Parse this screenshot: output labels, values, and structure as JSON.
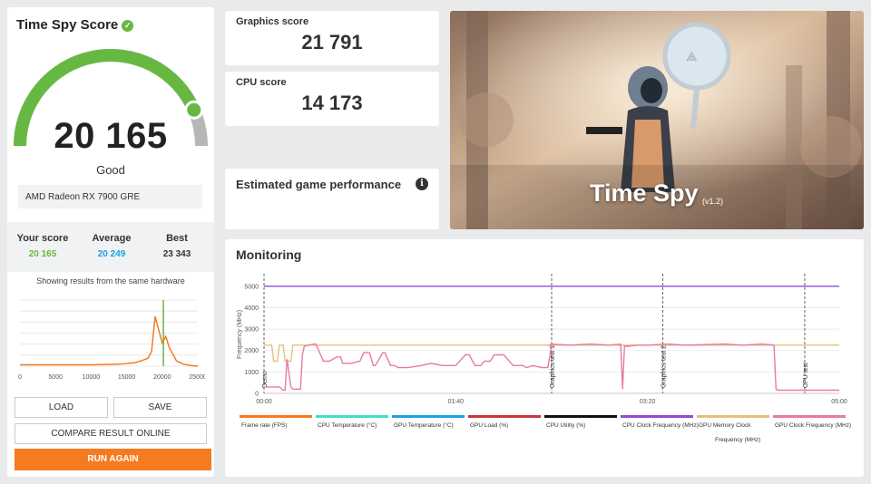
{
  "left_panel": {
    "title": "Time Spy Score",
    "score": "20 165",
    "rating": "Good",
    "gpu_name": "AMD Radeon RX 7900 GRE",
    "your_score_label": "Your score",
    "your_score": "20 165",
    "average_label": "Average",
    "average": "20 249",
    "best_label": "Best",
    "best": "23 343",
    "hist_note": "Showing results from the same hardware",
    "hist_ticks": [
      "0",
      "5000",
      "10000",
      "15000",
      "20000",
      "25000"
    ],
    "gauge_fraction": 0.87,
    "colors": {
      "green": "#67b843",
      "gray": "#b7b7b7",
      "orange": "#f47b20",
      "blue": "#1ba1e2"
    }
  },
  "buttons": {
    "load": "LOAD",
    "save": "SAVE",
    "compare": "COMPARE RESULT ONLINE",
    "run_again": "RUN AGAIN"
  },
  "scores": {
    "graphics_label": "Graphics score",
    "graphics": "21 791",
    "cpu_label": "CPU score",
    "cpu": "14 173"
  },
  "game_perf": {
    "label": "Estimated game performance",
    "info_icon": "info-icon"
  },
  "hero": {
    "title": "Time Spy",
    "version": "(v1.2)"
  },
  "monitoring": {
    "title": "Monitoring",
    "y_label": "Frequency (MHz)",
    "y_ticks": [
      "0",
      "1000",
      "2000",
      "3000",
      "4000",
      "5000"
    ],
    "x_ticks": [
      "00:00",
      "01:40",
      "03:20",
      "05:00"
    ],
    "markers": [
      "Demo",
      "Graphics test 1",
      "Graphics test 2",
      "CPU test"
    ],
    "legend": [
      {
        "label": "Frame rate (FPS)",
        "color": "#f47b20"
      },
      {
        "label": "CPU Temperature (°C)",
        "color": "#3ee0c8"
      },
      {
        "label": "GPU Temperature (°C)",
        "color": "#1ba1e2"
      },
      {
        "label": "GPU Load (%)",
        "color": "#c8373c"
      },
      {
        "label": "CPU Utility (%)",
        "color": "#111111"
      },
      {
        "label": "CPU Clock Frequency (MHz)",
        "color": "#8e4fd1"
      },
      {
        "label": "GPU Memory Clock Frequency (MHz)",
        "color": "#e6c07a"
      },
      {
        "label": "GPU Clock Frequency (MHz)",
        "color": "#e87aa6"
      }
    ]
  },
  "chart_data": {
    "type": "line",
    "xlabel": "",
    "ylabel": "Frequency (MHz)",
    "ylim": [
      0,
      5500
    ],
    "xlim_seconds": [
      0,
      300
    ],
    "series": [
      {
        "name": "CPU Clock Frequency (MHz)",
        "x": [
          0,
          300
        ],
        "values": [
          5000,
          5000
        ]
      },
      {
        "name": "GPU Memory Clock Frequency (MHz)",
        "x": [
          0,
          4,
          5,
          7,
          8,
          10,
          11,
          14,
          15,
          16,
          300
        ],
        "values": [
          2250,
          2250,
          1500,
          1500,
          2250,
          2250,
          1500,
          1500,
          2250,
          2250,
          2250
        ]
      },
      {
        "name": "GPU Clock Frequency (MHz)",
        "x": [
          0,
          8,
          10,
          11,
          12,
          14,
          15,
          19,
          20,
          21,
          26,
          27,
          31,
          34,
          38,
          40,
          41,
          45,
          50,
          52,
          55,
          57,
          58,
          62,
          63,
          66,
          68,
          70,
          75,
          82,
          87,
          93,
          100,
          105,
          107,
          110,
          113,
          115,
          118,
          120,
          125,
          130,
          135,
          137,
          140,
          145,
          148,
          150,
          149,
          150,
          160,
          170,
          180,
          186,
          187,
          188,
          190,
          195,
          200,
          210,
          220,
          240,
          250,
          260,
          266,
          267,
          268,
          270,
          300
        ],
        "values": [
          300,
          300,
          150,
          150,
          1600,
          300,
          200,
          200,
          1800,
          2200,
          2300,
          2300,
          1500,
          1500,
          1700,
          1700,
          1400,
          1400,
          1500,
          1900,
          1900,
          1300,
          1300,
          1900,
          1900,
          1300,
          1300,
          1200,
          1200,
          1300,
          1400,
          1300,
          1300,
          1800,
          1800,
          1300,
          1300,
          1500,
          1500,
          1800,
          1800,
          1300,
          1300,
          1200,
          1300,
          1200,
          1200,
          2250,
          2250,
          2300,
          2250,
          2300,
          2250,
          2300,
          200,
          2200,
          2200,
          2250,
          2250,
          2300,
          2250,
          2300,
          2250,
          2300,
          2250,
          200,
          150,
          150,
          150
        ]
      }
    ],
    "markers_seconds": [
      0,
      150,
      208,
      282
    ]
  },
  "histogram_data": {
    "type": "line",
    "xlim": [
      0,
      25000
    ],
    "x": [
      0,
      10000,
      14000,
      16000,
      17000,
      18000,
      18500,
      19000,
      19500,
      20000,
      20500,
      21000,
      21500,
      22000,
      23000,
      24000,
      25000
    ],
    "values": [
      0.02,
      0.02,
      0.03,
      0.05,
      0.08,
      0.12,
      0.22,
      0.75,
      0.55,
      0.35,
      0.45,
      0.28,
      0.18,
      0.08,
      0.03,
      0.01,
      0.0
    ],
    "your_score_x": 20165
  }
}
